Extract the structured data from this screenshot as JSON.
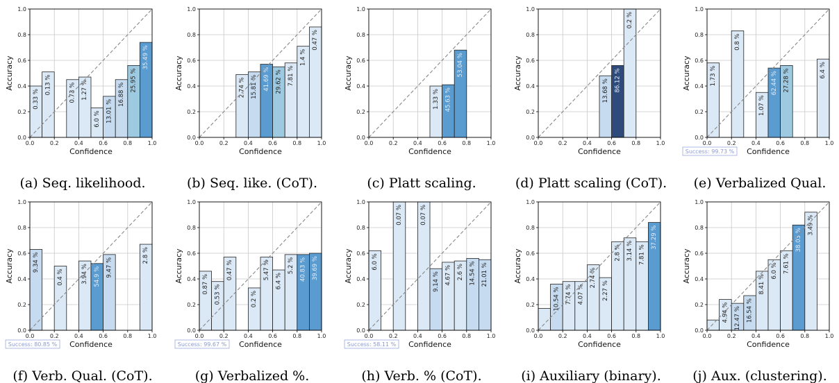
{
  "chart_data": [
    {
      "type": "bar",
      "caption": "(a) Seq. likelihood.",
      "xlabel": "Confidence",
      "ylabel": "Accuracy",
      "xlim": [
        0,
        1
      ],
      "ylim": [
        0,
        1
      ],
      "xticks": [
        "0.0",
        "0.2",
        "0.4",
        "0.6",
        "0.8",
        "1.0"
      ],
      "yticks": [
        "0.0",
        "0.2",
        "0.4",
        "0.6",
        "0.8",
        "1.0"
      ],
      "success": "",
      "bars": [
        {
          "x": 0.05,
          "y": 0.4,
          "label": "0.33 %",
          "shade": 1
        },
        {
          "x": 0.15,
          "y": 0.51,
          "label": "0.13 %",
          "shade": 1
        },
        {
          "x": 0.35,
          "y": 0.45,
          "label": "0.73 %",
          "shade": 1
        },
        {
          "x": 0.45,
          "y": 0.47,
          "label": "1.27 %",
          "shade": 1
        },
        {
          "x": 0.55,
          "y": 0.23,
          "label": "6.0 %",
          "shade": 1
        },
        {
          "x": 0.65,
          "y": 0.32,
          "label": "13.01 %",
          "shade": 2
        },
        {
          "x": 0.75,
          "y": 0.45,
          "label": "16.88 %",
          "shade": 2
        },
        {
          "x": 0.85,
          "y": 0.56,
          "label": "25.95 %",
          "shade": 3
        },
        {
          "x": 0.95,
          "y": 0.74,
          "label": "35.49 %",
          "shade": 4
        }
      ]
    },
    {
      "type": "bar",
      "caption": "(b) Seq. like. (CoT).",
      "xlabel": "Confidence",
      "ylabel": "Accuracy",
      "xlim": [
        0,
        1
      ],
      "ylim": [
        0,
        1
      ],
      "xticks": [
        "0.0",
        "0.2",
        "0.4",
        "0.6",
        "0.8",
        "1.0"
      ],
      "yticks": [
        "0.0",
        "0.2",
        "0.4",
        "0.6",
        "0.8",
        "1.0"
      ],
      "success": "",
      "bars": [
        {
          "x": 0.35,
          "y": 0.49,
          "label": "2.74 %",
          "shade": 1
        },
        {
          "x": 0.45,
          "y": 0.51,
          "label": "15.81 %",
          "shade": 2
        },
        {
          "x": 0.55,
          "y": 0.57,
          "label": "41.69 %",
          "shade": 4
        },
        {
          "x": 0.65,
          "y": 0.55,
          "label": "29.62 %",
          "shade": 3
        },
        {
          "x": 0.75,
          "y": 0.58,
          "label": "7.81 %",
          "shade": 1
        },
        {
          "x": 0.85,
          "y": 0.71,
          "label": "1.4 %",
          "shade": 1
        },
        {
          "x": 0.95,
          "y": 0.86,
          "label": "0.47 %",
          "shade": 1
        }
      ]
    },
    {
      "type": "bar",
      "caption": "(c) Platt scaling.",
      "xlabel": "Confidence",
      "ylabel": "Accuracy",
      "xlim": [
        0,
        1
      ],
      "ylim": [
        0,
        1
      ],
      "xticks": [
        "0.0",
        "0.2",
        "0.4",
        "0.6",
        "0.8",
        "1.0"
      ],
      "yticks": [
        "0.0",
        "0.2",
        "0.4",
        "0.6",
        "0.8",
        "1.0"
      ],
      "success": "",
      "bars": [
        {
          "x": 0.55,
          "y": 0.4,
          "label": "1.33 %",
          "shade": 1
        },
        {
          "x": 0.65,
          "y": 0.41,
          "label": "45.63 %",
          "shade": 4
        },
        {
          "x": 0.75,
          "y": 0.68,
          "label": "53.04 %",
          "shade": 4
        }
      ]
    },
    {
      "type": "bar",
      "caption": "(d) Platt scaling (CoT).",
      "xlabel": "Confidence",
      "ylabel": "Accuracy",
      "xlim": [
        0,
        1
      ],
      "ylim": [
        0,
        1
      ],
      "xticks": [
        "0.0",
        "0.2",
        "0.4",
        "0.6",
        "0.8",
        "1.0"
      ],
      "yticks": [
        "0.0",
        "0.2",
        "0.4",
        "0.6",
        "0.8",
        "1.0"
      ],
      "success": "",
      "bars": [
        {
          "x": 0.55,
          "y": 0.48,
          "label": "13.68 %",
          "shade": 2
        },
        {
          "x": 0.65,
          "y": 0.56,
          "label": "86.12 %",
          "shade": 5
        },
        {
          "x": 0.75,
          "y": 1.0,
          "label": "0.2 %",
          "shade": 1
        }
      ]
    },
    {
      "type": "bar",
      "caption": "(e) Verbalized Qual.",
      "xlabel": "Confidence",
      "ylabel": "Accuracy",
      "xlim": [
        0,
        1
      ],
      "ylim": [
        0,
        1
      ],
      "xticks": [
        "0.0",
        "0.2",
        "0.4",
        "0.6",
        "0.8",
        "1.0"
      ],
      "yticks": [
        "0.0",
        "0.2",
        "0.4",
        "0.6",
        "0.8",
        "1.0"
      ],
      "success": "Success: 99.73 %",
      "bars": [
        {
          "x": 0.05,
          "y": 0.58,
          "label": "1.73 %",
          "shade": 1
        },
        {
          "x": 0.25,
          "y": 0.83,
          "label": "0.8 %",
          "shade": 1
        },
        {
          "x": 0.45,
          "y": 0.35,
          "label": "1.07 %",
          "shade": 1
        },
        {
          "x": 0.55,
          "y": 0.54,
          "label": "62.44 %",
          "shade": 4
        },
        {
          "x": 0.65,
          "y": 0.56,
          "label": "27.28 %",
          "shade": 3
        },
        {
          "x": 0.95,
          "y": 0.61,
          "label": "6.4 %",
          "shade": 1
        }
      ]
    },
    {
      "type": "bar",
      "caption": "(f) Verb. Qual. (CoT).",
      "xlabel": "Confidence",
      "ylabel": "Accuracy",
      "xlim": [
        0,
        1
      ],
      "ylim": [
        0,
        1
      ],
      "xticks": [
        "0.0",
        "0.2",
        "0.4",
        "0.6",
        "0.8",
        "1.0"
      ],
      "yticks": [
        "0.0",
        "0.2",
        "0.4",
        "0.6",
        "0.8",
        "1.0"
      ],
      "success": "Success: 80.85 %",
      "bars": [
        {
          "x": 0.05,
          "y": 0.63,
          "label": "9.34 %",
          "shade": 2
        },
        {
          "x": 0.25,
          "y": 0.5,
          "label": "0.4 %",
          "shade": 1
        },
        {
          "x": 0.45,
          "y": 0.54,
          "label": "3.94 %",
          "shade": 1
        },
        {
          "x": 0.55,
          "y": 0.52,
          "label": "54.9 %",
          "shade": 4
        },
        {
          "x": 0.65,
          "y": 0.59,
          "label": "9.47 %",
          "shade": 2
        },
        {
          "x": 0.95,
          "y": 0.67,
          "label": "2.8 %",
          "shade": 1
        }
      ]
    },
    {
      "type": "bar",
      "caption": "(g) Verbalized %.",
      "xlabel": "Confidence",
      "ylabel": "Accuracy",
      "xlim": [
        0,
        1
      ],
      "ylim": [
        0,
        1
      ],
      "xticks": [
        "0.0",
        "0.2",
        "0.4",
        "0.6",
        "0.8",
        "1.0"
      ],
      "yticks": [
        "0.0",
        "0.2",
        "0.4",
        "0.6",
        "0.8",
        "1.0"
      ],
      "success": "Success: 99.67 %",
      "bars": [
        {
          "x": 0.05,
          "y": 0.46,
          "label": "0.87 %",
          "shade": 1
        },
        {
          "x": 0.15,
          "y": 0.38,
          "label": "0.53 %",
          "shade": 1
        },
        {
          "x": 0.25,
          "y": 0.57,
          "label": "0.47 %",
          "shade": 1
        },
        {
          "x": 0.45,
          "y": 0.33,
          "label": "0.2 %",
          "shade": 1
        },
        {
          "x": 0.55,
          "y": 0.57,
          "label": "5.47 %",
          "shade": 1
        },
        {
          "x": 0.65,
          "y": 0.47,
          "label": "6.4 %",
          "shade": 1
        },
        {
          "x": 0.75,
          "y": 0.59,
          "label": "5.2 %",
          "shade": 1
        },
        {
          "x": 0.85,
          "y": 0.59,
          "label": "40.83 %",
          "shade": 4
        },
        {
          "x": 0.95,
          "y": 0.6,
          "label": "39.69 %",
          "shade": 4
        }
      ]
    },
    {
      "type": "bar",
      "caption": "(h) Verb. % (CoT).",
      "xlabel": "Confidence",
      "ylabel": "Accuracy",
      "xlim": [
        0,
        1
      ],
      "ylim": [
        0,
        1
      ],
      "xticks": [
        "0.0",
        "0.2",
        "0.4",
        "0.6",
        "0.8",
        "1.0"
      ],
      "yticks": [
        "0.0",
        "0.2",
        "0.4",
        "0.6",
        "0.8",
        "1.0"
      ],
      "success": "Success: 58.11 %",
      "bars": [
        {
          "x": 0.05,
          "y": 0.62,
          "label": "6.0 %",
          "shade": 1
        },
        {
          "x": 0.25,
          "y": 1.0,
          "label": "0.07 %",
          "shade": 1
        },
        {
          "x": 0.45,
          "y": 1.0,
          "label": "0.07 %",
          "shade": 1
        },
        {
          "x": 0.55,
          "y": 0.48,
          "label": "9.14 %",
          "shade": 2
        },
        {
          "x": 0.65,
          "y": 0.53,
          "label": "4.67 %",
          "shade": 1
        },
        {
          "x": 0.75,
          "y": 0.54,
          "label": "2.6 %",
          "shade": 1
        },
        {
          "x": 0.85,
          "y": 0.56,
          "label": "14.54 %",
          "shade": 2
        },
        {
          "x": 0.95,
          "y": 0.55,
          "label": "21.01 %",
          "shade": 2
        }
      ]
    },
    {
      "type": "bar",
      "caption": "(i) Auxiliary (binary).",
      "xlabel": "Confidence",
      "ylabel": "Accuracy",
      "xlim": [
        0,
        1
      ],
      "ylim": [
        0,
        1
      ],
      "xticks": [
        "0.0",
        "0.2",
        "0.4",
        "0.6",
        "0.8",
        "1.0"
      ],
      "yticks": [
        "0.0",
        "0.2",
        "0.4",
        "0.6",
        "0.8",
        "1.0"
      ],
      "success": "",
      "bars": [
        {
          "x": 0.05,
          "y": 0.17,
          "label": "",
          "shade": 1
        },
        {
          "x": 0.15,
          "y": 0.36,
          "label": "10.54 %",
          "shade": 2
        },
        {
          "x": 0.25,
          "y": 0.38,
          "label": "7.74 %",
          "shade": 1
        },
        {
          "x": 0.35,
          "y": 0.38,
          "label": "4.07 %",
          "shade": 1
        },
        {
          "x": 0.45,
          "y": 0.51,
          "label": "2.74 %",
          "shade": 1
        },
        {
          "x": 0.55,
          "y": 0.41,
          "label": "2.27 %",
          "shade": 1
        },
        {
          "x": 0.65,
          "y": 0.69,
          "label": "2.8 %",
          "shade": 1
        },
        {
          "x": 0.75,
          "y": 0.72,
          "label": "3.14 %",
          "shade": 1
        },
        {
          "x": 0.85,
          "y": 0.69,
          "label": "7.81 %",
          "shade": 1
        },
        {
          "x": 0.95,
          "y": 0.84,
          "label": "37.29 %",
          "shade": 4
        }
      ]
    },
    {
      "type": "bar",
      "caption": "(j) Aux. (clustering).",
      "xlabel": "Confidence",
      "ylabel": "Accuracy",
      "xlim": [
        0,
        1
      ],
      "ylim": [
        0,
        1
      ],
      "xticks": [
        "0.0",
        "0.2",
        "0.4",
        "0.6",
        "0.8",
        "1.0"
      ],
      "yticks": [
        "0.0",
        "0.2",
        "0.4",
        "0.6",
        "0.8",
        "1.0"
      ],
      "success": "",
      "bars": [
        {
          "x": 0.05,
          "y": 0.08,
          "label": "",
          "shade": 1
        },
        {
          "x": 0.15,
          "y": 0.24,
          "label": "4.94 %",
          "shade": 1
        },
        {
          "x": 0.25,
          "y": 0.21,
          "label": "12.47 %",
          "shade": 2
        },
        {
          "x": 0.35,
          "y": 0.27,
          "label": "16.54 %",
          "shade": 2
        },
        {
          "x": 0.45,
          "y": 0.46,
          "label": "8.41 %",
          "shade": 1
        },
        {
          "x": 0.55,
          "y": 0.55,
          "label": "6.0 %",
          "shade": 1
        },
        {
          "x": 0.65,
          "y": 0.62,
          "label": "7.61 %",
          "shade": 1
        },
        {
          "x": 0.75,
          "y": 0.82,
          "label": "38.03 %",
          "shade": 4
        },
        {
          "x": 0.85,
          "y": 0.92,
          "label": "3.49 %",
          "shade": 1
        }
      ]
    }
  ],
  "colors": {
    "shade1": "#dbe9f6",
    "shade2": "#c6dbef",
    "shade3": "#9ecae1",
    "shade4": "#5a9bd0",
    "shade5": "#2f4b7c",
    "edge": "#222222",
    "diagonal": "#888888",
    "grid": "#c8c8c8"
  }
}
